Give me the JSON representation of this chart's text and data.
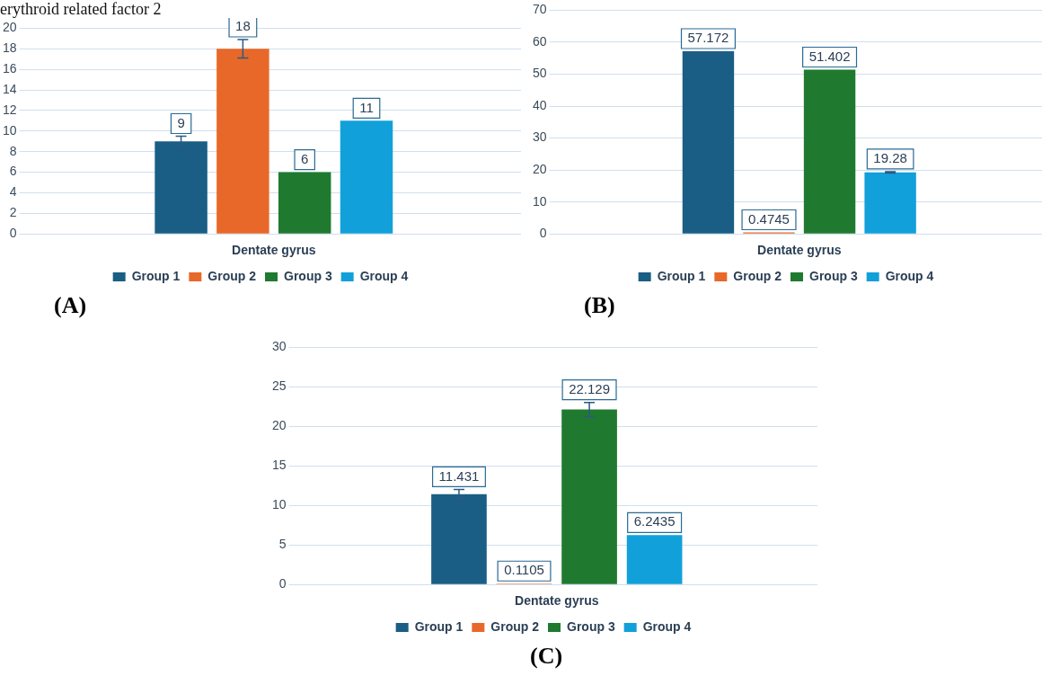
{
  "chart_data": [
    {
      "type": "bar",
      "title": "erythroid related factor 2",
      "categories": [
        "Dentate gyrus"
      ],
      "series": [
        {
          "name": "Group 1",
          "color": "#1a5e85",
          "values": [
            9
          ],
          "errors": [
            0.5
          ]
        },
        {
          "name": "Group 2",
          "color": "#e8682a",
          "values": [
            18
          ],
          "errors": [
            0.9
          ]
        },
        {
          "name": "Group 3",
          "color": "#1f7a2f",
          "values": [
            6
          ]
        },
        {
          "name": "Group 4",
          "color": "#12a0da",
          "values": [
            11
          ]
        }
      ],
      "ylim": [
        0,
        20
      ],
      "yticks": [
        0,
        2,
        4,
        6,
        8,
        10,
        12,
        14,
        16,
        18,
        20
      ],
      "grid": "y",
      "legend": "bottom",
      "data_labels": true,
      "annotations": [
        "(A)"
      ]
    },
    {
      "type": "bar",
      "categories": [
        "Dentate gyrus"
      ],
      "series": [
        {
          "name": "Group 1",
          "color": "#1a5e85",
          "values": [
            57.172
          ]
        },
        {
          "name": "Group 2",
          "color": "#e8682a",
          "values": [
            0.4745
          ]
        },
        {
          "name": "Group 3",
          "color": "#1f7a2f",
          "values": [
            51.402
          ]
        },
        {
          "name": "Group 4",
          "color": "#12a0da",
          "values": [
            19.28
          ],
          "errors": [
            0.2
          ]
        }
      ],
      "ylim": [
        0,
        70
      ],
      "yticks": [
        0,
        10,
        20,
        30,
        40,
        50,
        60,
        70
      ],
      "grid": "y",
      "legend": "bottom",
      "data_labels": true,
      "annotations": [
        "(B)"
      ]
    },
    {
      "type": "bar",
      "categories": [
        "Dentate gyrus"
      ],
      "series": [
        {
          "name": "Group 1",
          "color": "#1a5e85",
          "values": [
            11.431
          ],
          "errors": [
            0.6
          ]
        },
        {
          "name": "Group 2",
          "color": "#e8682a",
          "values": [
            0.1105
          ]
        },
        {
          "name": "Group 3",
          "color": "#1f7a2f",
          "values": [
            22.129
          ],
          "errors": [
            0.9
          ]
        },
        {
          "name": "Group 4",
          "color": "#12a0da",
          "values": [
            6.2435
          ]
        }
      ],
      "ylim": [
        0,
        30
      ],
      "yticks": [
        0,
        5,
        10,
        15,
        20,
        25,
        30
      ],
      "grid": "y",
      "legend": "bottom",
      "data_labels": true,
      "annotations": [
        "(C)"
      ]
    }
  ]
}
